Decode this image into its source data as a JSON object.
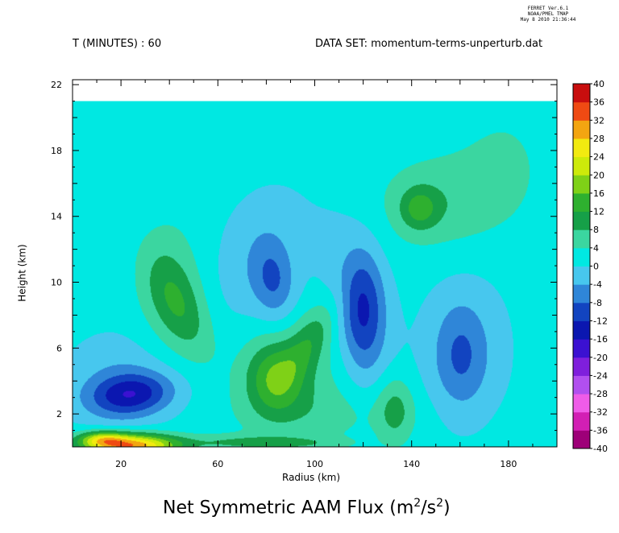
{
  "header": {
    "ferret_line1": "FERRET Ver.6.1",
    "ferret_line2": "NOAA/PMEL TMAP",
    "ferret_line3": "May 8 2010 21:36:44",
    "time_label": "T (MINUTES) : 60",
    "dataset_label": "DATA SET: momentum-terms-unperturb.dat"
  },
  "chart_data": {
    "type": "heatmap",
    "title_main": "Net Symmetric AAM Flux (m",
    "title_sup1": "2",
    "title_mid": "/s",
    "title_sup2": "2",
    "title_end": ")",
    "xlabel": "Radius (km)",
    "ylabel": "Height (km)",
    "xlim": [
      0,
      200
    ],
    "ylim": [
      0,
      22.3
    ],
    "data_top": 21,
    "x_ticks": [
      20,
      60,
      100,
      140,
      180
    ],
    "x_tick_labels": [
      "20",
      "60",
      "100",
      "140",
      "180"
    ],
    "y_ticks": [
      2,
      6,
      10,
      14,
      18,
      22
    ],
    "y_tick_labels": [
      "2",
      "6",
      "10",
      "14",
      "18",
      "22"
    ],
    "colorbar": {
      "levels": [
        -40,
        -36,
        -32,
        -28,
        -24,
        -20,
        -16,
        -12,
        -8,
        -4,
        0,
        4,
        8,
        12,
        16,
        20,
        24,
        28,
        32,
        36,
        40
      ],
      "labels": [
        "-40",
        "-36",
        "-32",
        "-28",
        "-24",
        "-20",
        "-16",
        "-12",
        "-8",
        "-4",
        "0",
        "4",
        "8",
        "12",
        "16",
        "20",
        "24",
        "28",
        "32",
        "36",
        "40"
      ],
      "colors": [
        "#6b003f",
        "#9e0078",
        "#d21fb4",
        "#ef5ce8",
        "#b14fef",
        "#7f1fdc",
        "#3b11d1",
        "#0b17b0",
        "#1244c0",
        "#2f86d8",
        "#47c7ee",
        "#00e8e2",
        "#3bd6a0",
        "#16a048",
        "#2eb02f",
        "#7fd117",
        "#cdea0a",
        "#f2ea10",
        "#f3a511",
        "#ef4a13",
        "#c80e0e",
        "#7a0b0b"
      ]
    },
    "background_value": 1.5,
    "features": [
      {
        "x": 24,
        "y": 3.2,
        "rx": 18,
        "ry": 1.3,
        "value": -13.5,
        "angle": 8
      },
      {
        "x": 20,
        "y": 4.0,
        "rx": 24,
        "ry": 3.0,
        "value": -5
      },
      {
        "x": 24,
        "y": 0.1,
        "rx": 20,
        "ry": 0.75,
        "value": 30
      },
      {
        "x": 12,
        "y": 0.5,
        "rx": 10,
        "ry": 0.5,
        "value": 14
      },
      {
        "x": 68,
        "y": 0.3,
        "rx": 24,
        "ry": 0.5,
        "value": 6
      },
      {
        "x": 95,
        "y": 0.25,
        "rx": 22,
        "ry": 0.4,
        "value": 4
      },
      {
        "x": 44,
        "y": 8.5,
        "rx": 11,
        "ry": 3.5,
        "value": 8,
        "angle": 20
      },
      {
        "x": 40,
        "y": 10,
        "rx": 15,
        "ry": 4.8,
        "value": 4.5
      },
      {
        "x": 83,
        "y": 10.0,
        "rx": 9,
        "ry": 2.6,
        "value": -8,
        "angle": 5
      },
      {
        "x": 76,
        "y": 11.5,
        "rx": 19,
        "ry": 4.6,
        "value": -4.3,
        "angle": -15
      },
      {
        "x": 120,
        "y": 8.3,
        "rx": 9,
        "ry": 3.8,
        "value": -10.5
      },
      {
        "x": 117,
        "y": 8.8,
        "rx": 14,
        "ry": 5.5,
        "value": -4.5,
        "angle": 10
      },
      {
        "x": 83,
        "y": 4.2,
        "rx": 12,
        "ry": 2.2,
        "value": 10.5
      },
      {
        "x": 98,
        "y": 6.5,
        "rx": 8,
        "ry": 2.8,
        "value": 7,
        "angle": -25
      },
      {
        "x": 90,
        "y": 4.6,
        "rx": 23,
        "ry": 3.8,
        "value": 5
      },
      {
        "x": 133,
        "y": 2.3,
        "rx": 8,
        "ry": 2.2,
        "value": 7.5
      },
      {
        "x": 160,
        "y": 5.5,
        "rx": 11,
        "ry": 3.3,
        "value": -6.5
      },
      {
        "x": 162,
        "y": 6.0,
        "rx": 20,
        "ry": 4.8,
        "value": -4.2
      },
      {
        "x": 143,
        "y": 14.5,
        "rx": 8,
        "ry": 1.3,
        "value": 8.5
      },
      {
        "x": 150,
        "y": 14.8,
        "rx": 26,
        "ry": 3.0,
        "value": 5.5,
        "angle": 8
      },
      {
        "x": 178,
        "y": 17.2,
        "rx": 20,
        "ry": 4.0,
        "value": 3
      },
      {
        "x": 105,
        "y": 2.0,
        "rx": 40,
        "ry": 1.8,
        "value": 3
      },
      {
        "x": 26,
        "y": 15.5,
        "rx": 22,
        "ry": 5.5,
        "value": -0.7
      }
    ]
  }
}
